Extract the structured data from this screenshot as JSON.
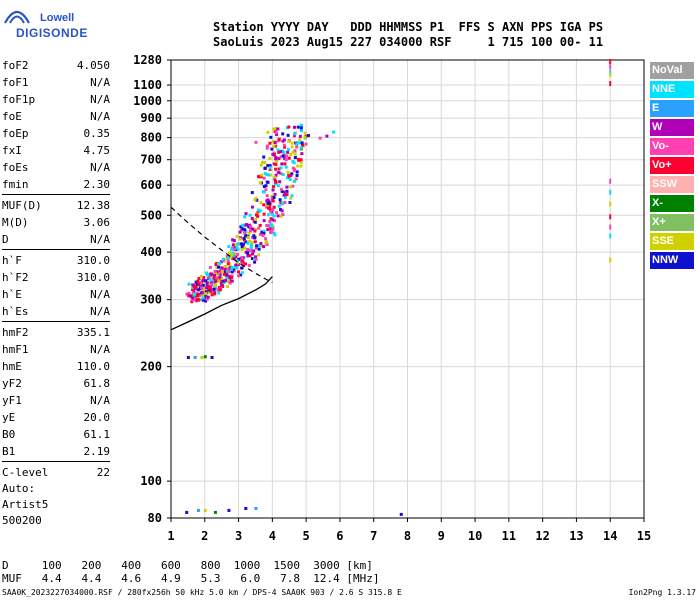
{
  "logo": {
    "line1": "Lowell",
    "line2": "DIGISONDE"
  },
  "header": {
    "labels_line": "Station YYYY DAY   DDD HHMMSS P1  FFS S AXN PPS IGA PS",
    "values_line": "SaoLuis 2023 Aug15 227 034000 RSF     1 715 100 00- 11"
  },
  "params_group1": [
    {
      "name": "foF2",
      "value": "4.050"
    },
    {
      "name": "foF1",
      "value": "N/A"
    },
    {
      "name": "foF1p",
      "value": "N/A"
    },
    {
      "name": "foE",
      "value": "N/A"
    },
    {
      "name": "foEp",
      "value": "0.35"
    },
    {
      "name": "fxI",
      "value": "4.75"
    },
    {
      "name": "foEs",
      "value": "N/A"
    },
    {
      "name": "fmin",
      "value": "2.30"
    }
  ],
  "params_group2": [
    {
      "name": "MUF(D)",
      "value": "12.38"
    },
    {
      "name": "M(D)",
      "value": "3.06"
    },
    {
      "name": "D",
      "value": "N/A"
    }
  ],
  "params_group3": [
    {
      "name": "h`F",
      "value": "310.0"
    },
    {
      "name": "h`F2",
      "value": "310.0"
    },
    {
      "name": "h`E",
      "value": "N/A"
    },
    {
      "name": "h`Es",
      "value": "N/A"
    }
  ],
  "params_group4": [
    {
      "name": "hmF2",
      "value": "335.1"
    },
    {
      "name": "hmF1",
      "value": "N/A"
    },
    {
      "name": "hmE",
      "value": "110.0"
    },
    {
      "name": "yF2",
      "value": "61.8"
    },
    {
      "name": "yF1",
      "value": "N/A"
    },
    {
      "name": "yE",
      "value": "20.0"
    },
    {
      "name": "B0",
      "value": "61.1"
    },
    {
      "name": "B1",
      "value": "2.19"
    }
  ],
  "params_group5": [
    {
      "name": "C-level",
      "value": "22"
    }
  ],
  "autoscaling": {
    "line1": "Auto:",
    "line2": "Artist5",
    "line3": "500200"
  },
  "legend": [
    {
      "label": "NoVal",
      "color": "#a0a0a0",
      "text_color": "#ffffff"
    },
    {
      "label": "NNE",
      "color": "#00e0ff",
      "text_color": "#ffffff"
    },
    {
      "label": "E",
      "color": "#2aa0ff",
      "text_color": "#ffffff"
    },
    {
      "label": "W",
      "color": "#b000b8",
      "text_color": "#ffffff"
    },
    {
      "label": "Vo-",
      "color": "#ff40b0",
      "text_color": "#ffffff"
    },
    {
      "label": "Vo+",
      "color": "#ff0030",
      "text_color": "#ffffff"
    },
    {
      "label": "SSW",
      "color": "#ffb0b0",
      "text_color": "#ffffff"
    },
    {
      "label": "X-",
      "color": "#008000",
      "text_color": "#ffffff"
    },
    {
      "label": "X+",
      "color": "#80c060",
      "text_color": "#ffffff"
    },
    {
      "label": "SSE",
      "color": "#d0d000",
      "text_color": "#ffffff"
    },
    {
      "label": "NNW",
      "color": "#1010d0",
      "text_color": "#ffffff"
    }
  ],
  "muf_table": {
    "d_label": "D",
    "muf_label": "MUF",
    "distances": [
      "100",
      "200",
      "400",
      "600",
      "800",
      "1000",
      "1500",
      "3000"
    ],
    "distance_unit": "[km]",
    "mufs": [
      "4.4",
      "4.4",
      "4.6",
      "4.9",
      "5.3",
      "6.0",
      "7.8",
      "12.4"
    ],
    "muf_unit": "[MHz]"
  },
  "footer": {
    "left": "SAA0K_2023227034000.RSF / 280fx256h 50 kHz 5.0 km / DPS-4 SAA0K 903 / 2.6 S 315.8 E",
    "right": "Ion2Png 1.3.17"
  },
  "chart_data": {
    "type": "scatter",
    "title": "",
    "xlabel": "",
    "ylabel": "",
    "xlim": [
      1,
      15
    ],
    "ylim": [
      80,
      1280
    ],
    "yscale": "log",
    "x_ticks": [
      1,
      2,
      3,
      4,
      5,
      6,
      7,
      8,
      9,
      10,
      11,
      12,
      13,
      14,
      15
    ],
    "y_ticks": [
      80,
      100,
      200,
      300,
      400,
      500,
      600,
      700,
      800,
      900,
      1000,
      1100,
      1280
    ],
    "grid": true,
    "legend_position": "right",
    "main_trace": {
      "label": "O-trace echoes",
      "points": [
        [
          1.9,
          305
        ],
        [
          2.1,
          310
        ],
        [
          2.4,
          320
        ],
        [
          2.7,
          335
        ],
        [
          3.0,
          350
        ],
        [
          3.3,
          372
        ],
        [
          3.6,
          398
        ],
        [
          3.9,
          430
        ],
        [
          4.2,
          475
        ],
        [
          4.5,
          540
        ],
        [
          4.7,
          610
        ],
        [
          4.85,
          680
        ],
        [
          5.0,
          760
        ],
        [
          5.15,
          820
        ]
      ]
    },
    "f_layer_profile_solid": [
      [
        1.0,
        250
      ],
      [
        1.5,
        262
      ],
      [
        2.0,
        275
      ],
      [
        2.5,
        290
      ],
      [
        3.0,
        302
      ],
      [
        3.5,
        318
      ],
      [
        3.8,
        330
      ],
      [
        4.0,
        345
      ]
    ],
    "e_layer_profile_dashed": [
      [
        1.0,
        525
      ],
      [
        1.5,
        478
      ],
      [
        2.0,
        438
      ],
      [
        2.5,
        405
      ],
      [
        3.0,
        375
      ],
      [
        3.5,
        352
      ],
      [
        3.8,
        340
      ],
      [
        4.0,
        333
      ]
    ],
    "x_trace_upper": [
      [
        5.4,
        800
      ],
      [
        5.6,
        810
      ],
      [
        5.8,
        830
      ]
    ],
    "low_echoes": [
      [
        1.5,
        212
      ],
      [
        1.7,
        212
      ],
      [
        1.9,
        212
      ],
      [
        2.0,
        213
      ],
      [
        2.2,
        212
      ],
      [
        1.45,
        83
      ],
      [
        1.8,
        84
      ],
      [
        2.0,
        84
      ],
      [
        2.3,
        83
      ],
      [
        2.7,
        84
      ],
      [
        3.2,
        85
      ],
      [
        3.5,
        85
      ]
    ],
    "column_14": [
      [
        14,
        1280
      ],
      [
        14,
        1240
      ],
      [
        14,
        1200
      ],
      [
        14,
        1180
      ],
      [
        14,
        1120
      ],
      [
        14,
        620
      ],
      [
        14,
        580
      ],
      [
        14,
        540
      ],
      [
        14,
        500
      ],
      [
        14,
        470
      ],
      [
        14,
        445
      ],
      [
        14,
        385
      ]
    ],
    "isolated": [
      [
        7.8,
        82
      ],
      [
        4.0,
        725
      ],
      [
        3.5,
        780
      ]
    ]
  }
}
